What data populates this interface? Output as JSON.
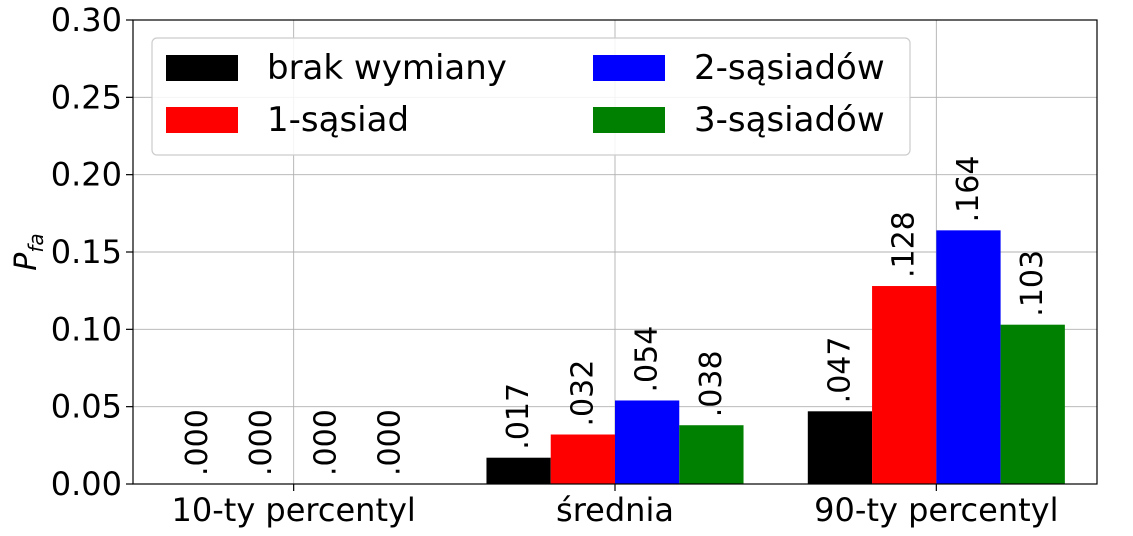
{
  "chart_data": {
    "type": "bar",
    "categories": [
      "10-ty percentyl",
      "średnia",
      "90-ty percentyl"
    ],
    "series": [
      {
        "name": "brak wymiany",
        "color": "#000000",
        "values": [
          0.0,
          0.017,
          0.047
        ],
        "labels": [
          ".000",
          ".017",
          ".047"
        ]
      },
      {
        "name": "1-sąsiad",
        "color": "#ff0000",
        "values": [
          0.0,
          0.032,
          0.128
        ],
        "labels": [
          ".000",
          ".032",
          ".128"
        ]
      },
      {
        "name": "2-sąsiadów",
        "color": "#0000ff",
        "values": [
          0.0,
          0.054,
          0.164
        ],
        "labels": [
          ".000",
          ".054",
          ".164"
        ]
      },
      {
        "name": "3-sąsiadów",
        "color": "#008000",
        "values": [
          0.0,
          0.038,
          0.103
        ],
        "labels": [
          ".000",
          ".038",
          ".103"
        ]
      }
    ],
    "ylabel_main": "P",
    "ylabel_sub": "fa",
    "xlabel": "",
    "ylim": [
      0,
      0.3
    ],
    "yticks": [
      "0.00",
      "0.05",
      "0.10",
      "0.15",
      "0.20",
      "0.25",
      "0.30"
    ],
    "ytick_values": [
      0,
      0.05,
      0.1,
      0.15,
      0.2,
      0.25,
      0.3
    ],
    "grid": true,
    "legend_position": "upper-left",
    "legend_columns": 2
  }
}
